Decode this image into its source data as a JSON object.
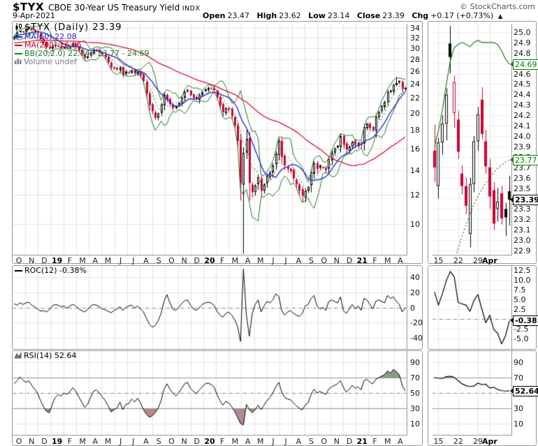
{
  "header": {
    "symbol": "$TYX",
    "title": "CBOE 30-Year US Treasury Yield",
    "title_suffix": "INDX",
    "copyright": "© StockCharts.com",
    "date": "9-Apr-2021",
    "quote": {
      "open_label": "Open",
      "open": "23.47",
      "high_label": "High",
      "high": "23.62",
      "low_label": "Low",
      "low": "23.14",
      "close_label": "Close",
      "close": "23.39",
      "chg_label": "Chg",
      "chg": "+0.17 (+0.73%)",
      "arrow": "▲"
    }
  },
  "colors": {
    "black": "#000000",
    "red": "#cc0033",
    "ma50_blue": "#2222cc",
    "ma200_red": "#dd1133",
    "bb_green": "#1f7a1f",
    "grid": "#e2e2e2",
    "grid_minor": "#ececec",
    "axis": "#999999",
    "dash": "#888888",
    "rsi_over_fill": "rgba(110,143,112,0.85)",
    "rsi_under_fill": "rgba(165,120,120,0.85)",
    "volume_gray": "#808080"
  },
  "main_chart": {
    "legend": {
      "symbol_line": "$TYX (Daily) 23.39",
      "ma50": "MA(50) 22.08",
      "ma200": "MA(200) 16.96",
      "bb": "BB(20,2.0) 22.84 - 23.77 - 24.69",
      "volume": "Volume undef"
    }
  },
  "chart_data": [
    {
      "id": "price_main",
      "type": "candlestick",
      "symbol": "$TYX",
      "period": "Daily (weekly-sampled approximation)",
      "y_scale": "log",
      "y_labels": [
        "34",
        "32",
        "30",
        "28",
        "26",
        "24",
        "22",
        "20",
        "18",
        "16",
        "14",
        "12",
        "10"
      ],
      "y_range": [
        8.25,
        34.9
      ],
      "x_labels": [
        "O",
        "N",
        "D",
        "19",
        "F",
        "M",
        "A",
        "M",
        "J",
        "J",
        "A",
        "S",
        "O",
        "N",
        "D",
        "20",
        "F",
        "M",
        "A",
        "M",
        "J",
        "J",
        "A",
        "S",
        "O",
        "N",
        "D",
        "21",
        "F",
        "M",
        "A"
      ],
      "bold_x_labels": [
        "19",
        "20",
        "21"
      ],
      "overlays": {
        "ma50": 22.08,
        "ma200": 16.96,
        "bb20": [
          22.84,
          23.77,
          24.69
        ]
      },
      "closes": [
        32.2,
        33.1,
        33.4,
        33.2,
        33.8,
        34.1,
        33.6,
        33.2,
        33.0,
        31.8,
        31.0,
        30.3,
        29.9,
        30.4,
        30.6,
        30.3,
        30.0,
        30.2,
        30.0,
        30.3,
        30.8,
        30.2,
        29.5,
        28.9,
        28.2,
        28.5,
        29.2,
        29.7,
        29.6,
        29.3,
        28.8,
        28.3,
        27.5,
        26.6,
        26.4,
        26.2,
        26.6,
        25.4,
        25.9,
        25.7,
        26.1,
        25.6,
        25.9,
        25.3,
        24.4,
        22.6,
        21.0,
        20.2,
        19.4,
        19.9,
        21.1,
        22.4,
        21.7,
        21.2,
        20.6,
        20.9,
        21.3,
        22.0,
        22.8,
        23.1,
        22.4,
        22.0,
        21.8,
        22.4,
        22.8,
        23.2,
        23.4,
        23.3,
        23.1,
        22.1,
        21.0,
        20.1,
        20.6,
        20.4,
        19.6,
        18.5,
        16.8,
        12.9,
        15.6,
        17.0,
        12.9,
        12.2,
        12.7,
        13.4,
        12.3,
        12.8,
        13.5,
        13.8,
        14.4,
        15.5,
        16.8,
        15.2,
        14.4,
        14.1,
        13.9,
        13.3,
        12.8,
        12.3,
        11.9,
        12.3,
        12.6,
        13.8,
        14.6,
        14.1,
        14.4,
        14.2,
        14.0,
        15.0,
        15.6,
        16.0,
        16.3,
        17.3,
        16.4,
        15.9,
        16.2,
        16.7,
        16.4,
        16.6,
        16.4,
        18.3,
        18.7,
        18.2,
        18.0,
        19.5,
        20.1,
        20.9,
        21.4,
        22.8,
        23.0,
        23.8,
        24.1,
        24.4,
        23.2,
        23.39
      ],
      "high_overrides": {
        "5": 34.3,
        "79": 18.0,
        "130": 25.05
      },
      "low_overrides": {
        "48": 19.1,
        "78": 8.3
      }
    },
    {
      "id": "price_inset",
      "type": "candlestick",
      "period": "daily, 12-Mar-2021 to 9-Apr-2021",
      "y_labels": [
        "25.0",
        "24.9",
        "24.8",
        "24.7",
        "24.6",
        "24.5",
        "24.4",
        "24.3",
        "24.2",
        "24.1",
        "24.0",
        "23.9",
        "23.8",
        "23.7",
        "23.6",
        "23.5",
        "23.4",
        "23.3",
        "23.2",
        "23.1",
        "23.0",
        "22.9"
      ],
      "y_range": [
        22.86,
        25.08
      ],
      "x_labels": [
        "15",
        "22",
        "29",
        "Apr"
      ],
      "x_label_indices": [
        1,
        6,
        11,
        14
      ],
      "bold_x_labels": [
        "Apr"
      ],
      "candles": [
        [
          23.86,
          24.11,
          23.56,
          23.7
        ],
        [
          23.52,
          23.98,
          23.4,
          23.94
        ],
        [
          23.94,
          24.2,
          23.82,
          24.12
        ],
        [
          24.12,
          24.46,
          23.96,
          24.4
        ],
        [
          24.89,
          25.06,
          24.6,
          24.76
        ],
        [
          24.22,
          24.58,
          24.08,
          24.52
        ],
        [
          24.16,
          24.24,
          23.78,
          23.85
        ],
        [
          23.64,
          23.72,
          23.44,
          23.52
        ],
        [
          23.52,
          23.6,
          23.25,
          23.33
        ],
        [
          23.06,
          23.6,
          22.93,
          23.54
        ],
        [
          23.54,
          24.0,
          23.46,
          23.95
        ],
        [
          23.95,
          24.28,
          23.86,
          24.21
        ],
        [
          24.35,
          24.47,
          23.97,
          24.02
        ],
        [
          23.95,
          24.06,
          23.64,
          23.71
        ],
        [
          23.7,
          23.78,
          23.3,
          23.42
        ],
        [
          23.48,
          23.56,
          23.1,
          23.16
        ],
        [
          23.3,
          23.5,
          23.18,
          23.37
        ],
        [
          23.45,
          23.52,
          23.15,
          23.21
        ],
        [
          23.3,
          23.36,
          23.04,
          23.22
        ],
        [
          23.47,
          23.62,
          23.14,
          23.39
        ]
      ],
      "bb_upper": [
        23.9,
        24.05,
        24.25,
        24.5,
        24.72,
        24.85,
        24.88,
        24.9,
        24.88,
        24.86,
        24.9,
        24.92,
        24.9,
        24.9,
        24.9,
        24.9,
        24.88,
        24.82,
        24.74,
        24.69
      ],
      "bb_mid": [
        22.1,
        22.25,
        22.4,
        22.55,
        22.68,
        22.8,
        22.92,
        23.04,
        23.15,
        23.25,
        23.34,
        23.42,
        23.49,
        23.55,
        23.6,
        23.65,
        23.69,
        23.72,
        23.75,
        23.77
      ],
      "tags": [
        {
          "text": "24.69",
          "value": 24.69,
          "style": "green"
        },
        {
          "text": "23.77",
          "value": 23.77,
          "style": "green"
        },
        {
          "text": "23.39",
          "value": 23.39,
          "style": "black"
        }
      ]
    },
    {
      "id": "roc_main",
      "type": "line",
      "title": "ROC(12) -0.38%",
      "y_labels": [
        "40",
        "20",
        "0",
        "-20",
        "-40"
      ],
      "y_range": [
        -55,
        55
      ],
      "zero_line": "dash-dot",
      "values": [
        5,
        3,
        6,
        4,
        6,
        7,
        3,
        1,
        -2,
        -5,
        -4,
        -6,
        -3,
        2,
        4,
        3,
        1,
        2,
        -1,
        2,
        4,
        2,
        -2,
        -4,
        -6,
        -3,
        2,
        4,
        3,
        1,
        -2,
        -3,
        -5,
        -7,
        -4,
        -2,
        1,
        -4,
        0,
        2,
        3,
        -1,
        2,
        -2,
        -6,
        -14,
        -22,
        -26,
        -24,
        -18,
        -8,
        8,
        17,
        6,
        -2,
        -4,
        0,
        5,
        9,
        10,
        3,
        -2,
        -4,
        0,
        4,
        6,
        7,
        6,
        3,
        -5,
        -10,
        -13,
        -8,
        -6,
        -10,
        -16,
        -25,
        -45,
        51,
        -10,
        -38,
        -8,
        4,
        10,
        -6,
        2,
        8,
        6,
        10,
        18,
        15,
        -4,
        -10,
        -6,
        -4,
        -8,
        -10,
        -12,
        -8,
        2,
        4,
        12,
        16,
        2,
        -2,
        0,
        -4,
        8,
        10,
        8,
        6,
        14,
        -4,
        -8,
        -2,
        4,
        -2,
        2,
        -4,
        12,
        10,
        4,
        -2,
        8,
        10,
        8,
        6,
        16,
        12,
        14,
        8,
        4,
        -6,
        -0.38
      ]
    },
    {
      "id": "roc_inset",
      "type": "line",
      "y_labels": [
        "12.5",
        "10.0",
        "7.5",
        "5.0",
        "2.5",
        "-2.5",
        "-5.0"
      ],
      "y_range": [
        -7.6,
        13.6
      ],
      "zero_line": "dash-dot",
      "values": [
        7.0,
        3.6,
        6.5,
        9.8,
        12.2,
        10.8,
        4.3,
        3.9,
        3.6,
        2.0,
        4.8,
        6.3,
        2.6,
        -0.9,
        1.0,
        -2.6,
        -3.6,
        -6.3,
        -4.2,
        -0.38
      ],
      "tag": {
        "text": "-0.38",
        "value": -0.38,
        "style": "black"
      }
    },
    {
      "id": "rsi_main",
      "type": "line",
      "title": "RSI(14) 52.64",
      "y_labels": [
        "90",
        "70",
        "50",
        "30",
        "10"
      ],
      "y_range": [
        -5,
        105
      ],
      "overbought": 70,
      "oversold": 30,
      "mid_line": 50,
      "x_labels": [
        "O",
        "N",
        "D",
        "19",
        "F",
        "M",
        "A",
        "M",
        "J",
        "J",
        "A",
        "S",
        "O",
        "N",
        "D",
        "20",
        "F",
        "M",
        "A",
        "M",
        "J",
        "J",
        "A",
        "S",
        "O",
        "N",
        "D",
        "21",
        "F",
        "M",
        "A"
      ],
      "bold_x_labels": [
        "19",
        "20",
        "21"
      ],
      "values": [
        62,
        66,
        71,
        67,
        64,
        66,
        60,
        55,
        50,
        40,
        32,
        26,
        24,
        35,
        44,
        48,
        46,
        50,
        48,
        52,
        57,
        52,
        45,
        38,
        31,
        35,
        44,
        52,
        54,
        50,
        45,
        40,
        33,
        25,
        28,
        30,
        38,
        28,
        35,
        36,
        42,
        38,
        43,
        37,
        28,
        22,
        18,
        20,
        24,
        30,
        40,
        55,
        62,
        55,
        50,
        46,
        50,
        56,
        62,
        64,
        56,
        52,
        49,
        54,
        58,
        62,
        63,
        61,
        58,
        48,
        40,
        34,
        39,
        37,
        32,
        26,
        18,
        10,
        8,
        35,
        28,
        24,
        28,
        34,
        28,
        34,
        40,
        44,
        50,
        58,
        64,
        52,
        44,
        42,
        41,
        37,
        33,
        30,
        28,
        34,
        37,
        48,
        55,
        50,
        52,
        50,
        48,
        55,
        58,
        60,
        62,
        66,
        57,
        51,
        55,
        60,
        56,
        58,
        54,
        66,
        68,
        64,
        62,
        68,
        70,
        72,
        74,
        79,
        76,
        81,
        78,
        74,
        60,
        52.64
      ]
    },
    {
      "id": "rsi_inset",
      "type": "line",
      "y_labels": [
        "90",
        "70",
        "50",
        "30",
        "10"
      ],
      "y_range": [
        -5,
        105
      ],
      "overbought": 70,
      "oversold": 30,
      "mid_line": 50,
      "x_labels": [
        "15",
        "22",
        "29",
        "Apr"
      ],
      "x_label_indices": [
        1,
        6,
        11,
        14
      ],
      "bold_x_labels": [
        "Apr"
      ],
      "values": [
        70,
        69.5,
        69,
        71.5,
        72,
        70.5,
        66,
        62,
        59.5,
        58.5,
        59,
        63,
        61,
        61.5,
        56.5,
        57.5,
        54.5,
        53,
        52.5,
        52.64
      ],
      "tag": {
        "text": "52.64",
        "value": 52.64,
        "style": "black"
      }
    }
  ]
}
